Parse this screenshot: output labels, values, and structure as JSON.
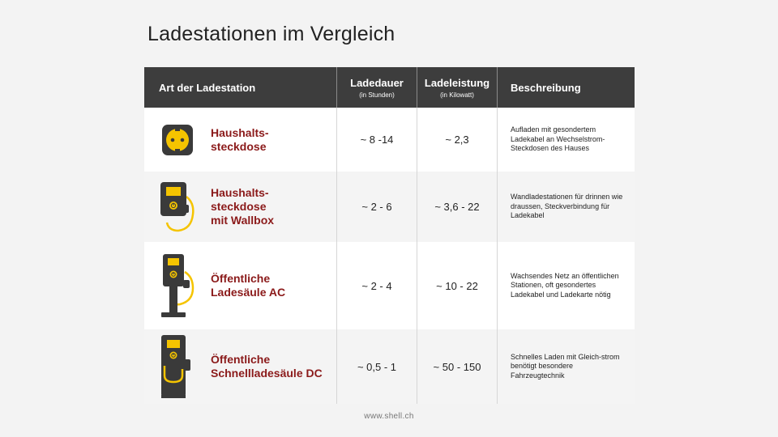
{
  "title": "Ladestationen im Vergleich",
  "header": {
    "col_type": "Art der Ladestation",
    "col_duration": "Ladedauer",
    "col_duration_unit": "(in Stunden)",
    "col_power": "Ladeleistung",
    "col_power_unit": "(in Kilowatt)",
    "col_desc": "Beschreibung"
  },
  "rows": [
    {
      "type": "Haushalts-\nsteckdose",
      "icon": "socket-icon",
      "duration": "~ 8 -14",
      "power": "~ 2,3",
      "description": "Aufladen mit gesondertem Ladekabel an Wechselstrom-Steckdosen des Hauses"
    },
    {
      "type": "Haushalts-\nsteckdose\nmit Wallbox",
      "icon": "wallbox-icon",
      "duration": "~ 2 - 6",
      "power": "~ 3,6 - 22",
      "description": "Wandladestationen für drinnen wie draussen, Steckverbindung für Ladekabel"
    },
    {
      "type": "Öffentliche\nLadesäule AC",
      "icon": "ac-charging-station-icon",
      "duration": "~ 2 - 4",
      "power": "~ 10 - 22",
      "description": "Wachsendes Netz an öffentlichen Stationen, oft gesondertes Ladekabel und Ladekarte nötig"
    },
    {
      "type": "Öffentliche\nSchnellladesäule DC",
      "icon": "dc-fast-charging-station-icon",
      "duration": "~ 0,5 - 1",
      "power": "~ 50 - 150",
      "description": "Schnelles Laden mit Gleich-strom benötigt besondere Fahrzeugtechnik"
    }
  ],
  "footer": "www.shell.ch",
  "colors": {
    "header_bg": "#3d3d3d",
    "accent_red": "#8b1a1a",
    "icon_yellow": "#f5c400",
    "icon_dark": "#3a3a3a"
  }
}
